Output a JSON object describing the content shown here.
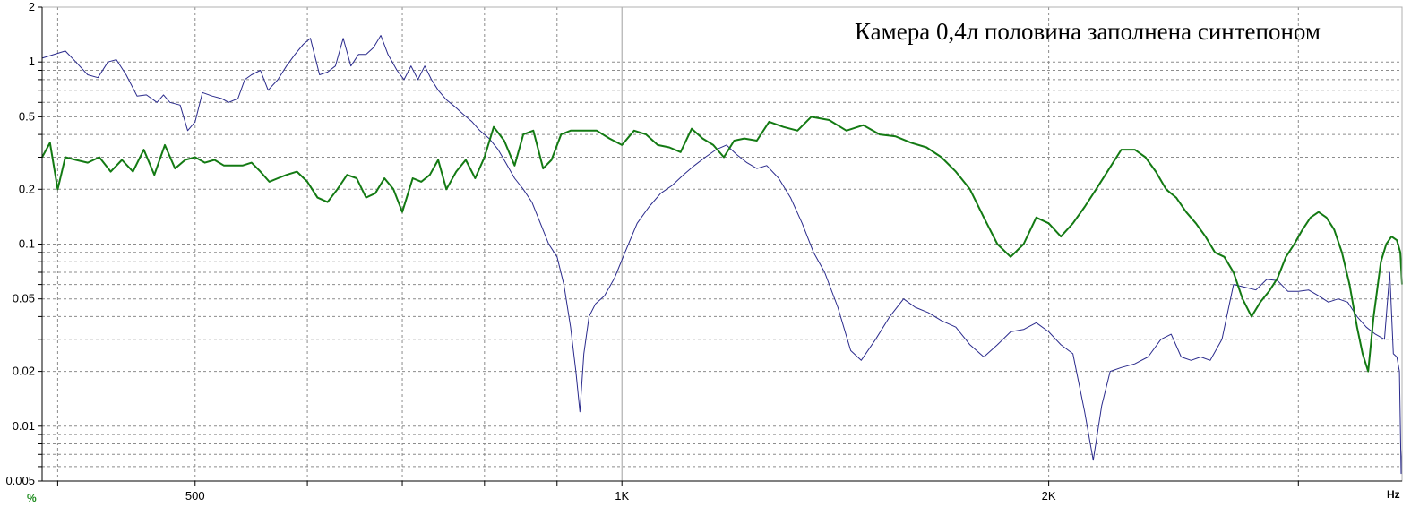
{
  "chart_data": {
    "type": "line",
    "title": "Камера 0,4л половина заполнена синтепоном",
    "xscale": "log",
    "yscale": "log",
    "xlim": [
      390,
      3550
    ],
    "ylim": [
      0.005,
      2
    ],
    "grid": true,
    "x_unit_label": "Hz",
    "y_unit_label": "%",
    "x_tick_labels": [
      {
        "value": 500,
        "label": "500"
      },
      {
        "value": 1000,
        "label": "1K"
      },
      {
        "value": 2000,
        "label": "2K"
      }
    ],
    "y_tick_labels": [
      {
        "value": 2,
        "label": "2"
      },
      {
        "value": 1,
        "label": "1"
      },
      {
        "value": 0.5,
        "label": "0.5"
      },
      {
        "value": 0.2,
        "label": "0.2"
      },
      {
        "value": 0.1,
        "label": "0.1"
      },
      {
        "value": 0.05,
        "label": "0.05"
      },
      {
        "value": 0.02,
        "label": "0.02"
      },
      {
        "value": 0.01,
        "label": "0.01"
      },
      {
        "value": 0.005,
        "label": "0.005"
      }
    ],
    "series": [
      {
        "color": "#2a2a8c",
        "stroke_width": 1,
        "points": [
          [
            390,
            1.05
          ],
          [
            405,
            1.15
          ],
          [
            412,
            1.0
          ],
          [
            420,
            0.85
          ],
          [
            427,
            0.82
          ],
          [
            434,
            1.0
          ],
          [
            440,
            1.03
          ],
          [
            447,
            0.85
          ],
          [
            455,
            0.65
          ],
          [
            462,
            0.66
          ],
          [
            470,
            0.6
          ],
          [
            475,
            0.66
          ],
          [
            480,
            0.6
          ],
          [
            488,
            0.58
          ],
          [
            494,
            0.42
          ],
          [
            500,
            0.47
          ],
          [
            506,
            0.68
          ],
          [
            514,
            0.65
          ],
          [
            522,
            0.63
          ],
          [
            528,
            0.6
          ],
          [
            536,
            0.63
          ],
          [
            542,
            0.8
          ],
          [
            548,
            0.85
          ],
          [
            556,
            0.9
          ],
          [
            563,
            0.7
          ],
          [
            572,
            0.8
          ],
          [
            580,
            0.95
          ],
          [
            588,
            1.1
          ],
          [
            596,
            1.25
          ],
          [
            603,
            1.35
          ],
          [
            612,
            0.85
          ],
          [
            620,
            0.88
          ],
          [
            628,
            0.95
          ],
          [
            636,
            1.35
          ],
          [
            644,
            0.95
          ],
          [
            652,
            1.1
          ],
          [
            660,
            1.1
          ],
          [
            668,
            1.2
          ],
          [
            676,
            1.4
          ],
          [
            684,
            1.1
          ],
          [
            694,
            0.9
          ],
          [
            702,
            0.8
          ],
          [
            710,
            0.95
          ],
          [
            718,
            0.8
          ],
          [
            726,
            0.95
          ],
          [
            734,
            0.8
          ],
          [
            742,
            0.7
          ],
          [
            752,
            0.62
          ],
          [
            762,
            0.57
          ],
          [
            772,
            0.52
          ],
          [
            784,
            0.47
          ],
          [
            794,
            0.42
          ],
          [
            806,
            0.38
          ],
          [
            818,
            0.33
          ],
          [
            828,
            0.28
          ],
          [
            840,
            0.23
          ],
          [
            852,
            0.2
          ],
          [
            864,
            0.17
          ],
          [
            876,
            0.13
          ],
          [
            888,
            0.1
          ],
          [
            900,
            0.085
          ],
          [
            910,
            0.06
          ],
          [
            920,
            0.035
          ],
          [
            928,
            0.02
          ],
          [
            934,
            0.012
          ],
          [
            940,
            0.025
          ],
          [
            948,
            0.04
          ],
          [
            958,
            0.047
          ],
          [
            972,
            0.052
          ],
          [
            988,
            0.065
          ],
          [
            1005,
            0.09
          ],
          [
            1025,
            0.13
          ],
          [
            1045,
            0.16
          ],
          [
            1065,
            0.19
          ],
          [
            1085,
            0.21
          ],
          [
            1105,
            0.24
          ],
          [
            1125,
            0.27
          ],
          [
            1145,
            0.3
          ],
          [
            1165,
            0.33
          ],
          [
            1185,
            0.35
          ],
          [
            1205,
            0.31
          ],
          [
            1225,
            0.28
          ],
          [
            1245,
            0.26
          ],
          [
            1265,
            0.27
          ],
          [
            1290,
            0.23
          ],
          [
            1315,
            0.18
          ],
          [
            1340,
            0.13
          ],
          [
            1365,
            0.09
          ],
          [
            1390,
            0.07
          ],
          [
            1420,
            0.045
          ],
          [
            1450,
            0.026
          ],
          [
            1475,
            0.023
          ],
          [
            1510,
            0.03
          ],
          [
            1545,
            0.04
          ],
          [
            1580,
            0.05
          ],
          [
            1610,
            0.045
          ],
          [
            1645,
            0.042
          ],
          [
            1680,
            0.038
          ],
          [
            1720,
            0.035
          ],
          [
            1760,
            0.028
          ],
          [
            1800,
            0.024
          ],
          [
            1840,
            0.028
          ],
          [
            1880,
            0.033
          ],
          [
            1920,
            0.034
          ],
          [
            1960,
            0.037
          ],
          [
            2000,
            0.033
          ],
          [
            2040,
            0.028
          ],
          [
            2080,
            0.025
          ],
          [
            2120,
            0.012
          ],
          [
            2150,
            0.0065
          ],
          [
            2180,
            0.013
          ],
          [
            2210,
            0.02
          ],
          [
            2250,
            0.021
          ],
          [
            2300,
            0.022
          ],
          [
            2350,
            0.024
          ],
          [
            2400,
            0.03
          ],
          [
            2440,
            0.032
          ],
          [
            2480,
            0.024
          ],
          [
            2520,
            0.023
          ],
          [
            2560,
            0.024
          ],
          [
            2600,
            0.023
          ],
          [
            2650,
            0.03
          ],
          [
            2700,
            0.06
          ],
          [
            2750,
            0.058
          ],
          [
            2800,
            0.056
          ],
          [
            2850,
            0.064
          ],
          [
            2900,
            0.063
          ],
          [
            2950,
            0.055
          ],
          [
            3000,
            0.055
          ],
          [
            3050,
            0.056
          ],
          [
            3100,
            0.052
          ],
          [
            3150,
            0.048
          ],
          [
            3200,
            0.05
          ],
          [
            3250,
            0.048
          ],
          [
            3300,
            0.04
          ],
          [
            3350,
            0.035
          ],
          [
            3400,
            0.032
          ],
          [
            3450,
            0.03
          ],
          [
            3480,
            0.07
          ],
          [
            3500,
            0.025
          ],
          [
            3520,
            0.024
          ],
          [
            3535,
            0.02
          ],
          [
            3545,
            0.0055
          ],
          [
            3550,
            0.0075
          ]
        ]
      },
      {
        "color": "#137a13",
        "stroke_width": 2,
        "points": [
          [
            390,
            0.3
          ],
          [
            395,
            0.36
          ],
          [
            400,
            0.2
          ],
          [
            405,
            0.3
          ],
          [
            412,
            0.29
          ],
          [
            420,
            0.28
          ],
          [
            428,
            0.3
          ],
          [
            436,
            0.25
          ],
          [
            444,
            0.29
          ],
          [
            452,
            0.25
          ],
          [
            460,
            0.33
          ],
          [
            468,
            0.24
          ],
          [
            476,
            0.35
          ],
          [
            484,
            0.26
          ],
          [
            492,
            0.29
          ],
          [
            500,
            0.3
          ],
          [
            508,
            0.28
          ],
          [
            516,
            0.29
          ],
          [
            524,
            0.27
          ],
          [
            532,
            0.27
          ],
          [
            540,
            0.27
          ],
          [
            548,
            0.28
          ],
          [
            556,
            0.25
          ],
          [
            564,
            0.22
          ],
          [
            572,
            0.23
          ],
          [
            580,
            0.24
          ],
          [
            590,
            0.25
          ],
          [
            600,
            0.22
          ],
          [
            610,
            0.18
          ],
          [
            620,
            0.17
          ],
          [
            630,
            0.2
          ],
          [
            640,
            0.24
          ],
          [
            650,
            0.23
          ],
          [
            660,
            0.18
          ],
          [
            670,
            0.19
          ],
          [
            680,
            0.23
          ],
          [
            690,
            0.2
          ],
          [
            700,
            0.15
          ],
          [
            712,
            0.23
          ],
          [
            722,
            0.22
          ],
          [
            732,
            0.24
          ],
          [
            742,
            0.29
          ],
          [
            752,
            0.2
          ],
          [
            764,
            0.25
          ],
          [
            776,
            0.29
          ],
          [
            788,
            0.23
          ],
          [
            800,
            0.3
          ],
          [
            812,
            0.44
          ],
          [
            826,
            0.37
          ],
          [
            840,
            0.27
          ],
          [
            852,
            0.4
          ],
          [
            866,
            0.42
          ],
          [
            880,
            0.26
          ],
          [
            892,
            0.29
          ],
          [
            906,
            0.4
          ],
          [
            920,
            0.42
          ],
          [
            940,
            0.42
          ],
          [
            960,
            0.42
          ],
          [
            980,
            0.38
          ],
          [
            1000,
            0.35
          ],
          [
            1020,
            0.42
          ],
          [
            1040,
            0.4
          ],
          [
            1060,
            0.35
          ],
          [
            1080,
            0.34
          ],
          [
            1100,
            0.32
          ],
          [
            1120,
            0.43
          ],
          [
            1140,
            0.38
          ],
          [
            1160,
            0.35
          ],
          [
            1180,
            0.3
          ],
          [
            1200,
            0.37
          ],
          [
            1220,
            0.38
          ],
          [
            1245,
            0.37
          ],
          [
            1270,
            0.47
          ],
          [
            1300,
            0.44
          ],
          [
            1330,
            0.42
          ],
          [
            1360,
            0.5
          ],
          [
            1400,
            0.48
          ],
          [
            1440,
            0.42
          ],
          [
            1480,
            0.45
          ],
          [
            1520,
            0.4
          ],
          [
            1560,
            0.39
          ],
          [
            1600,
            0.36
          ],
          [
            1640,
            0.34
          ],
          [
            1680,
            0.3
          ],
          [
            1720,
            0.25
          ],
          [
            1760,
            0.2
          ],
          [
            1800,
            0.14
          ],
          [
            1840,
            0.1
          ],
          [
            1880,
            0.085
          ],
          [
            1920,
            0.1
          ],
          [
            1960,
            0.14
          ],
          [
            2000,
            0.13
          ],
          [
            2040,
            0.11
          ],
          [
            2080,
            0.13
          ],
          [
            2120,
            0.16
          ],
          [
            2160,
            0.2
          ],
          [
            2200,
            0.25
          ],
          [
            2250,
            0.33
          ],
          [
            2300,
            0.33
          ],
          [
            2340,
            0.3
          ],
          [
            2380,
            0.25
          ],
          [
            2420,
            0.2
          ],
          [
            2460,
            0.18
          ],
          [
            2500,
            0.15
          ],
          [
            2540,
            0.13
          ],
          [
            2580,
            0.11
          ],
          [
            2620,
            0.09
          ],
          [
            2660,
            0.085
          ],
          [
            2700,
            0.07
          ],
          [
            2740,
            0.05
          ],
          [
            2780,
            0.04
          ],
          [
            2820,
            0.048
          ],
          [
            2860,
            0.055
          ],
          [
            2900,
            0.065
          ],
          [
            2940,
            0.085
          ],
          [
            2980,
            0.1
          ],
          [
            3020,
            0.12
          ],
          [
            3060,
            0.14
          ],
          [
            3100,
            0.15
          ],
          [
            3140,
            0.14
          ],
          [
            3180,
            0.12
          ],
          [
            3220,
            0.09
          ],
          [
            3260,
            0.06
          ],
          [
            3300,
            0.035
          ],
          [
            3330,
            0.025
          ],
          [
            3360,
            0.02
          ],
          [
            3390,
            0.04
          ],
          [
            3430,
            0.08
          ],
          [
            3460,
            0.1
          ],
          [
            3490,
            0.11
          ],
          [
            3520,
            0.105
          ],
          [
            3540,
            0.09
          ],
          [
            3550,
            0.06
          ]
        ]
      }
    ]
  },
  "colors": {
    "grid_major": "#a0a0a0",
    "grid_dashed": "#8c8c8c",
    "axis_line": "#000000",
    "unit_percent": "#1e8c1e",
    "unit_hz": "#000000"
  }
}
